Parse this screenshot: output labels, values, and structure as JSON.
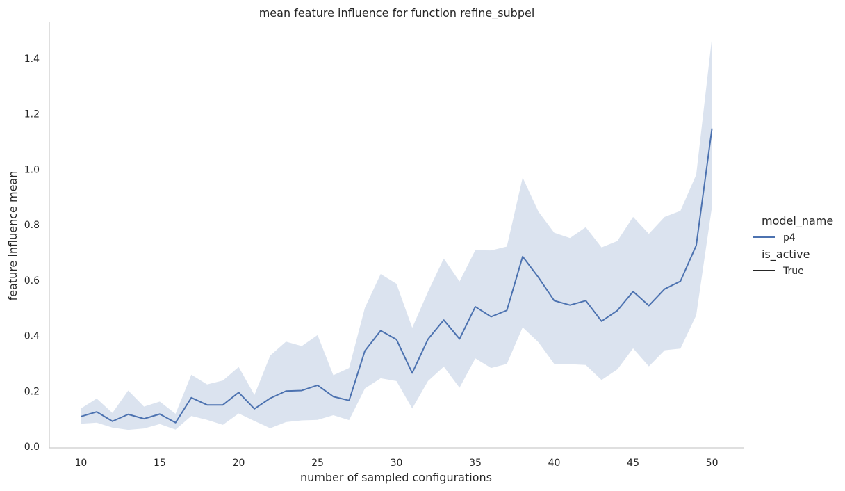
{
  "chart_data": {
    "type": "line",
    "title": "mean feature influence for function refine_subpel",
    "xlabel": "number of sampled configurations",
    "ylabel": "feature influence mean",
    "xlim": [
      8,
      52
    ],
    "ylim": [
      -0.005,
      1.53
    ],
    "xticks": [
      10,
      15,
      20,
      25,
      30,
      35,
      40,
      45,
      50
    ],
    "yticks": [
      0.0,
      0.2,
      0.4,
      0.6,
      0.8,
      1.0,
      1.2,
      1.4
    ],
    "ytick_labels": [
      "0.0",
      "0.2",
      "0.4",
      "0.6",
      "0.8",
      "1.0",
      "1.2",
      "1.4"
    ],
    "grid": false,
    "legend": {
      "placement": "right",
      "hue_title": "model_name",
      "hue_entries": [
        {
          "label": "p4",
          "color": "#4c72b0"
        }
      ],
      "style_title": "is_active",
      "style_entries": [
        {
          "label": "True",
          "color": "#262626"
        }
      ]
    },
    "series": [
      {
        "name": "p4",
        "color": "#4c72b0",
        "x": [
          10,
          11,
          12,
          13,
          14,
          15,
          16,
          17,
          18,
          19,
          20,
          21,
          22,
          23,
          24,
          25,
          26,
          27,
          28,
          29,
          30,
          31,
          32,
          33,
          34,
          35,
          36,
          37,
          38,
          39,
          40,
          41,
          42,
          43,
          44,
          45,
          46,
          47,
          48,
          49,
          50
        ],
        "y": [
          0.108,
          0.125,
          0.091,
          0.116,
          0.1,
          0.117,
          0.086,
          0.176,
          0.15,
          0.15,
          0.195,
          0.136,
          0.174,
          0.2,
          0.202,
          0.221,
          0.18,
          0.166,
          0.345,
          0.418,
          0.386,
          0.265,
          0.387,
          0.456,
          0.388,
          0.504,
          0.468,
          0.491,
          0.685,
          0.61,
          0.526,
          0.51,
          0.526,
          0.452,
          0.49,
          0.559,
          0.508,
          0.568,
          0.596,
          0.725,
          1.147
        ],
        "ci_lower": [
          0.082,
          0.086,
          0.068,
          0.06,
          0.065,
          0.081,
          0.061,
          0.11,
          0.096,
          0.078,
          0.119,
          0.092,
          0.066,
          0.088,
          0.094,
          0.096,
          0.113,
          0.095,
          0.209,
          0.246,
          0.236,
          0.137,
          0.236,
          0.288,
          0.212,
          0.318,
          0.283,
          0.298,
          0.43,
          0.376,
          0.298,
          0.297,
          0.294,
          0.24,
          0.278,
          0.354,
          0.289,
          0.347,
          0.353,
          0.473,
          0.865
        ],
        "ci_upper": [
          0.137,
          0.173,
          0.121,
          0.202,
          0.144,
          0.162,
          0.118,
          0.259,
          0.224,
          0.238,
          0.287,
          0.186,
          0.328,
          0.378,
          0.362,
          0.402,
          0.257,
          0.283,
          0.5,
          0.622,
          0.587,
          0.428,
          0.558,
          0.678,
          0.595,
          0.708,
          0.707,
          0.721,
          0.97,
          0.847,
          0.771,
          0.752,
          0.791,
          0.718,
          0.741,
          0.828,
          0.767,
          0.828,
          0.85,
          0.98,
          1.475
        ]
      }
    ]
  }
}
